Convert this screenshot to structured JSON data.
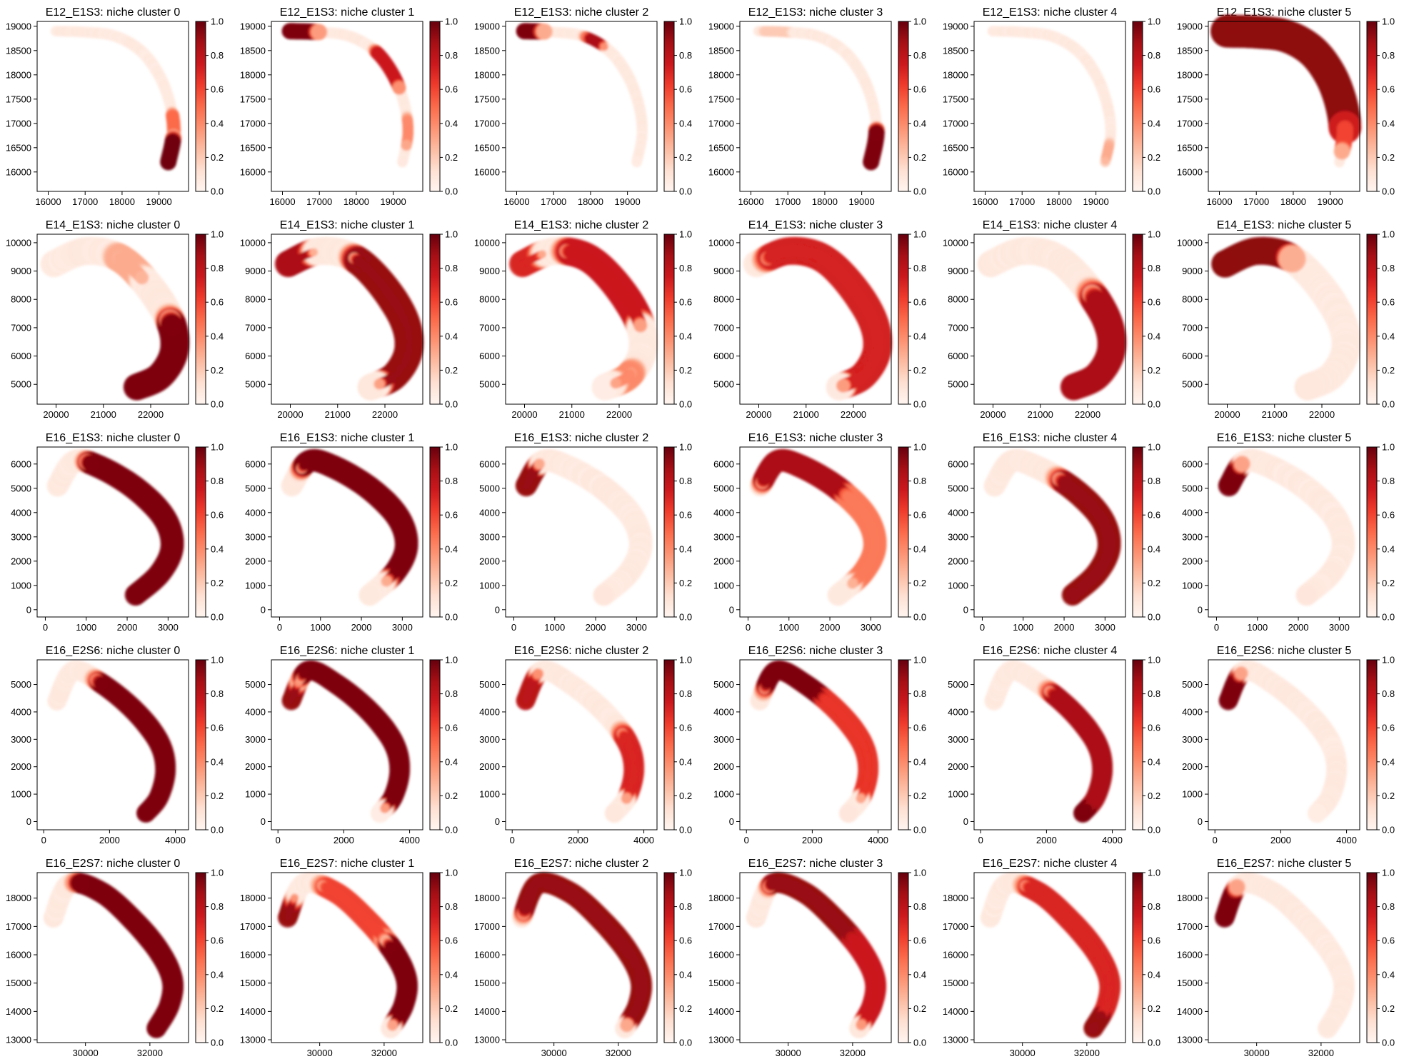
{
  "chart_data": {
    "type": "heatmap",
    "colormap": "Reds",
    "background": "#ffffff",
    "colorbar": {
      "range": [
        0.0,
        1.0
      ],
      "ticks": [
        "0.0",
        "0.2",
        "0.4",
        "0.6",
        "0.8",
        "1.0"
      ]
    },
    "panel_title_format": "{sample}: niche cluster {cluster}",
    "clusters": [
      0,
      1,
      2,
      3,
      4,
      5
    ],
    "rows": [
      {
        "sample": "E12_E1S3",
        "xlim": [
          15700,
          19800
        ],
        "ylim": [
          15600,
          19100
        ],
        "xticks": [
          16000,
          17000,
          18000,
          19000
        ],
        "yticks": [
          16000,
          16500,
          17000,
          17500,
          18000,
          18500,
          19000
        ],
        "centerline": [
          [
            16200,
            18900
          ],
          [
            17000,
            18880
          ],
          [
            17800,
            18800
          ],
          [
            18500,
            18500
          ],
          [
            19000,
            18000
          ],
          [
            19300,
            17400
          ],
          [
            19400,
            16800
          ],
          [
            19250,
            16200
          ]
        ],
        "half_width": 160,
        "panels": [
          {
            "cluster": 0,
            "title": "E12_E1S3: niche cluster 0",
            "hotspots": [
              [
                0.9,
                1.0,
                0.06,
                0.98
              ],
              [
                0.78,
                0.86,
                0.05,
                0.5
              ]
            ]
          },
          {
            "cluster": 1,
            "title": "E12_E1S3: niche cluster 1",
            "hotspots": [
              [
                0.0,
                0.12,
                0.06,
                0.95
              ],
              [
                0.45,
                0.62,
                0.05,
                0.75
              ],
              [
                0.8,
                0.9,
                0.04,
                0.4
              ]
            ]
          },
          {
            "cluster": 2,
            "title": "E12_E1S3: niche cluster 2",
            "hotspots": [
              [
                0.0,
                0.08,
                0.06,
                0.95
              ],
              [
                0.32,
                0.38,
                0.03,
                0.85
              ]
            ]
          },
          {
            "cluster": 3,
            "title": "E12_E1S3: niche cluster 3",
            "hotspots": [
              [
                0.86,
                1.0,
                0.06,
                0.95
              ],
              [
                0.05,
                0.15,
                0.05,
                0.2
              ]
            ]
          },
          {
            "cluster": 4,
            "title": "E12_E1S3: niche cluster 4",
            "hotspots": [
              [
                0.92,
                0.98,
                0.03,
                0.3
              ]
            ]
          },
          {
            "cluster": 5,
            "title": "E12_E1S3: niche cluster 5",
            "hotspots": [
              [
                0.0,
                0.82,
                0.12,
                0.92
              ],
              [
                0.82,
                0.92,
                0.06,
                0.6
              ]
            ]
          }
        ]
      },
      {
        "sample": "E14_E1S3",
        "xlim": [
          19600,
          22800
        ],
        "ylim": [
          4300,
          10300
        ],
        "xticks": [
          20000,
          21000,
          22000
        ],
        "yticks": [
          5000,
          6000,
          7000,
          8000,
          9000,
          10000
        ],
        "centerline": [
          [
            19950,
            9250
          ],
          [
            20600,
            9700
          ],
          [
            21300,
            9500
          ],
          [
            21900,
            8600
          ],
          [
            22400,
            7300
          ],
          [
            22500,
            6200
          ],
          [
            22200,
            5300
          ],
          [
            21700,
            4900
          ]
        ],
        "half_width": 320,
        "panels": [
          {
            "cluster": 0,
            "title": "E14_E1S3: niche cluster 0",
            "hotspots": [
              [
                0.6,
                1.0,
                0.08,
                0.95
              ],
              [
                0.3,
                0.4,
                0.05,
                0.3
              ]
            ]
          },
          {
            "cluster": 1,
            "title": "E14_E1S3: niche cluster 1",
            "hotspots": [
              [
                0.32,
                0.92,
                0.04,
                0.9
              ],
              [
                0.0,
                0.1,
                0.03,
                0.85
              ]
            ]
          },
          {
            "cluster": 2,
            "title": "E14_E1S3: niche cluster 2",
            "hotspots": [
              [
                0.22,
                0.58,
                0.05,
                0.75
              ],
              [
                0.0,
                0.08,
                0.03,
                0.7
              ],
              [
                0.85,
                0.92,
                0.04,
                0.4
              ]
            ]
          },
          {
            "cluster": 3,
            "title": "E14_E1S3: niche cluster 3",
            "hotspots": [
              [
                0.08,
                0.95,
                0.05,
                0.72
              ]
            ]
          },
          {
            "cluster": 4,
            "title": "E14_E1S3: niche cluster 4",
            "hotspots": [
              [
                0.5,
                1.0,
                0.07,
                0.85
              ]
            ]
          },
          {
            "cluster": 5,
            "title": "E14_E1S3: niche cluster 5",
            "hotspots": [
              [
                0.0,
                0.28,
                0.1,
                0.92
              ]
            ]
          }
        ]
      },
      {
        "sample": "E16_E1S3",
        "xlim": [
          -200,
          3500
        ],
        "ylim": [
          -300,
          6700
        ],
        "xticks": [
          0,
          1000,
          2000,
          3000
        ],
        "yticks": [
          0,
          1000,
          2000,
          3000,
          4000,
          5000,
          6000
        ],
        "centerline": [
          [
            300,
            5100
          ],
          [
            700,
            6100
          ],
          [
            1300,
            5900
          ],
          [
            2200,
            5000
          ],
          [
            2900,
            3800
          ],
          [
            3100,
            2600
          ],
          [
            2800,
            1500
          ],
          [
            2200,
            600
          ]
        ],
        "half_width": 300,
        "panels": [
          {
            "cluster": 0,
            "title": "E16_E1S3: niche cluster 0",
            "hotspots": [
              [
                0.25,
                1.0,
                0.06,
                0.95
              ],
              [
                0.85,
                1.0,
                0.1,
                0.95
              ]
            ]
          },
          {
            "cluster": 1,
            "title": "E16_E1S3: niche cluster 1",
            "hotspots": [
              [
                0.12,
                0.88,
                0.04,
                0.95
              ]
            ]
          },
          {
            "cluster": 2,
            "title": "E16_E1S3: niche cluster 2",
            "hotspots": [
              [
                0.0,
                0.1,
                0.04,
                0.9
              ]
            ]
          },
          {
            "cluster": 3,
            "title": "E16_E1S3: niche cluster 3",
            "hotspots": [
              [
                0.05,
                0.45,
                0.05,
                0.85
              ],
              [
                0.45,
                0.9,
                0.04,
                0.45
              ]
            ]
          },
          {
            "cluster": 4,
            "title": "E16_E1S3: niche cluster 4",
            "hotspots": [
              [
                0.4,
                1.0,
                0.05,
                0.9
              ]
            ]
          },
          {
            "cluster": 5,
            "title": "E16_E1S3: niche cluster 5",
            "hotspots": [
              [
                0.0,
                0.1,
                0.06,
                0.95
              ]
            ]
          }
        ]
      },
      {
        "sample": "E16_E2S6",
        "xlim": [
          -200,
          4400
        ],
        "ylim": [
          -300,
          5900
        ],
        "xticks": [
          0,
          2000,
          4000
        ],
        "yticks": [
          0,
          1000,
          2000,
          3000,
          4000,
          5000
        ],
        "centerline": [
          [
            400,
            4400
          ],
          [
            900,
            5500
          ],
          [
            1800,
            5000
          ],
          [
            2800,
            4000
          ],
          [
            3500,
            2900
          ],
          [
            3700,
            1900
          ],
          [
            3500,
            900
          ],
          [
            3100,
            300
          ]
        ],
        "half_width": 330,
        "panels": [
          {
            "cluster": 0,
            "title": "E16_E2S6: niche cluster 0",
            "hotspots": [
              [
                0.28,
                1.0,
                0.05,
                0.95
              ],
              [
                0.85,
                1.0,
                0.08,
                0.95
              ]
            ]
          },
          {
            "cluster": 1,
            "title": "E16_E2S6: niche cluster 1",
            "hotspots": [
              [
                0.12,
                0.92,
                0.035,
                0.95
              ],
              [
                0.0,
                0.06,
                0.03,
                0.9
              ]
            ]
          },
          {
            "cluster": 2,
            "title": "E16_E2S6: niche cluster 2",
            "hotspots": [
              [
                0.0,
                0.1,
                0.04,
                0.8
              ],
              [
                0.55,
                0.85,
                0.04,
                0.7
              ]
            ]
          },
          {
            "cluster": 3,
            "title": "E16_E2S6: niche cluster 3",
            "hotspots": [
              [
                0.08,
                0.35,
                0.04,
                0.95
              ],
              [
                0.35,
                0.85,
                0.035,
                0.65
              ]
            ]
          },
          {
            "cluster": 4,
            "title": "E16_E2S6: niche cluster 4",
            "hotspots": [
              [
                0.35,
                0.95,
                0.04,
                0.85
              ],
              [
                0.95,
                1.0,
                0.04,
                0.95
              ]
            ]
          },
          {
            "cluster": 5,
            "title": "E16_E2S6: niche cluster 5",
            "hotspots": [
              [
                0.0,
                0.1,
                0.05,
                0.95
              ]
            ]
          }
        ]
      },
      {
        "sample": "E16_E2S7",
        "xlim": [
          28500,
          33200
        ],
        "ylim": [
          12900,
          18900
        ],
        "xticks": [
          30000,
          32000
        ],
        "yticks": [
          13000,
          14000,
          15000,
          16000,
          17000,
          18000
        ],
        "centerline": [
          [
            29000,
            17300
          ],
          [
            29500,
            18500
          ],
          [
            30500,
            18200
          ],
          [
            31500,
            17200
          ],
          [
            32300,
            16100
          ],
          [
            32700,
            15100
          ],
          [
            32600,
            14200
          ],
          [
            32200,
            13400
          ]
        ],
        "half_width": 350,
        "panels": [
          {
            "cluster": 0,
            "title": "E16_E2S7: niche cluster 0",
            "hotspots": [
              [
                0.2,
                1.0,
                0.07,
                0.95
              ]
            ]
          },
          {
            "cluster": 1,
            "title": "E16_E2S7: niche cluster 1",
            "hotspots": [
              [
                0.55,
                0.95,
                0.04,
                0.95
              ],
              [
                0.0,
                0.06,
                0.03,
                0.9
              ],
              [
                0.25,
                0.5,
                0.04,
                0.6
              ]
            ]
          },
          {
            "cluster": 2,
            "title": "E16_E2S7: niche cluster 2",
            "hotspots": [
              [
                0.05,
                0.95,
                0.05,
                0.9
              ]
            ]
          },
          {
            "cluster": 3,
            "title": "E16_E2S7: niche cluster 3",
            "hotspots": [
              [
                0.15,
                0.5,
                0.05,
                0.9
              ],
              [
                0.5,
                0.95,
                0.04,
                0.75
              ]
            ]
          },
          {
            "cluster": 4,
            "title": "E16_E2S7: niche cluster 4",
            "hotspots": [
              [
                0.25,
                1.0,
                0.04,
                0.7
              ],
              [
                0.92,
                1.0,
                0.04,
                0.9
              ]
            ]
          },
          {
            "cluster": 5,
            "title": "E16_E2S7: niche cluster 5",
            "hotspots": [
              [
                0.0,
                0.1,
                0.06,
                0.95
              ]
            ]
          }
        ]
      }
    ]
  }
}
